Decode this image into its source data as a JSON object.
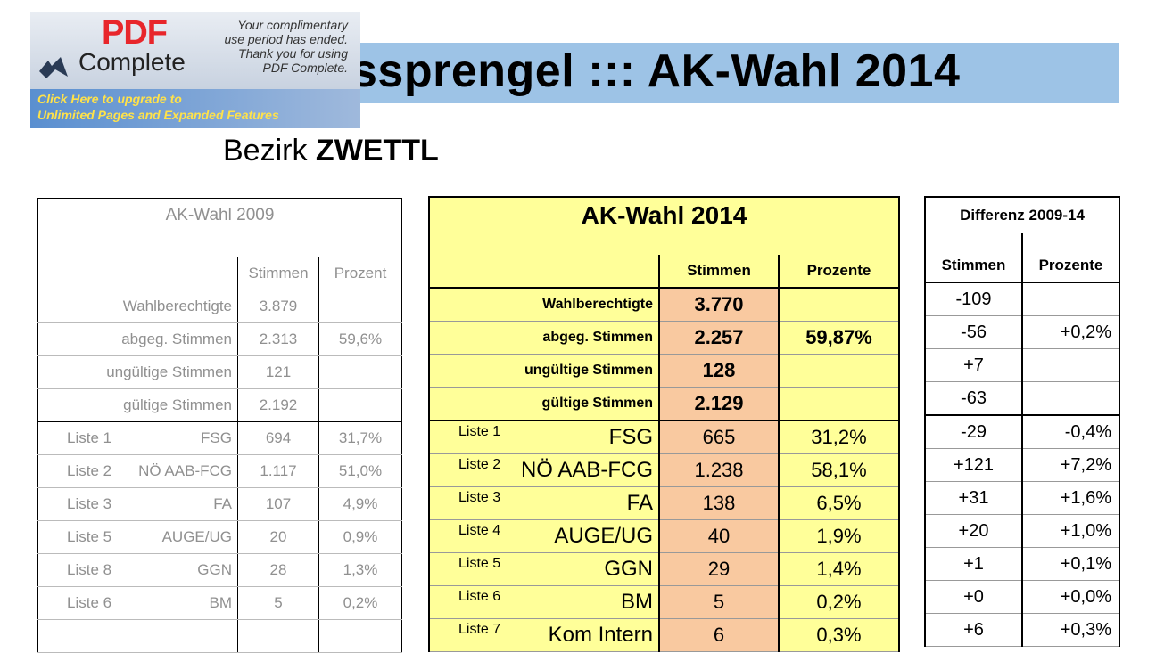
{
  "header": {
    "title": "ssprengel ::: AK-Wahl 2014",
    "subtitle_prefix": "Bezirk",
    "subtitle_name": "ZWETTL"
  },
  "pdf_banner": {
    "brand_pdf": "PDF",
    "brand_complete": "Complete",
    "message_lines": [
      "Your complimentary",
      "use period has ended.",
      "Thank you for using",
      "PDF Complete."
    ],
    "cta_lines": [
      "Click Here to upgrade to",
      "Unlimited Pages and Expanded Features"
    ]
  },
  "table_2009": {
    "title": "AK-Wahl 2009",
    "col_votes": "Stimmen",
    "col_pct": "Prozent",
    "summary": [
      {
        "label": "Wahlberechtigte",
        "votes": "3.879",
        "pct": ""
      },
      {
        "label": "abgeg. Stimmen",
        "votes": "2.313",
        "pct": "59,6%"
      },
      {
        "label": "ungültige Stimmen",
        "votes": "121",
        "pct": ""
      },
      {
        "label": "gültige Stimmen",
        "votes": "2.192",
        "pct": ""
      }
    ],
    "lists": [
      {
        "list": "Liste 1",
        "name": "FSG",
        "votes": "694",
        "pct": "31,7%"
      },
      {
        "list": "Liste 2",
        "name": "NÖ AAB-FCG",
        "votes": "1.117",
        "pct": "51,0%"
      },
      {
        "list": "Liste 3",
        "name": "FA",
        "votes": "107",
        "pct": "4,9%"
      },
      {
        "list": "Liste 5",
        "name": "AUGE/UG",
        "votes": "20",
        "pct": "0,9%"
      },
      {
        "list": "Liste 8",
        "name": "GGN",
        "votes": "28",
        "pct": "1,3%"
      },
      {
        "list": "Liste 6",
        "name": "BM",
        "votes": "5",
        "pct": "0,2%"
      },
      {
        "list": "",
        "name": "",
        "votes": "",
        "pct": ""
      }
    ]
  },
  "table_2014": {
    "title": "AK-Wahl 2014",
    "col_votes": "Stimmen",
    "col_pct": "Prozente",
    "summary": [
      {
        "label": "Wahlberechtigte",
        "votes": "3.770",
        "pct": ""
      },
      {
        "label": "abgeg. Stimmen",
        "votes": "2.257",
        "pct": "59,87%"
      },
      {
        "label": "ungültige Stimmen",
        "votes": "128",
        "pct": ""
      },
      {
        "label": "gültige Stimmen",
        "votes": "2.129",
        "pct": ""
      }
    ],
    "lists": [
      {
        "list": "Liste 1",
        "name": "FSG",
        "votes": "665",
        "pct": "31,2%"
      },
      {
        "list": "Liste 2",
        "name": "NÖ AAB-FCG",
        "votes": "1.238",
        "pct": "58,1%"
      },
      {
        "list": "Liste 3",
        "name": "FA",
        "votes": "138",
        "pct": "6,5%"
      },
      {
        "list": "Liste 4",
        "name": "AUGE/UG",
        "votes": "40",
        "pct": "1,9%"
      },
      {
        "list": "Liste 5",
        "name": "GGN",
        "votes": "29",
        "pct": "1,4%"
      },
      {
        "list": "Liste 6",
        "name": "BM",
        "votes": "5",
        "pct": "0,2%"
      },
      {
        "list": "Liste 7",
        "name": "Kom Intern",
        "votes": "6",
        "pct": "0,3%"
      }
    ]
  },
  "table_diff": {
    "title": "Differenz 2009-14",
    "col_votes": "Stimmen",
    "col_pct": "Prozente",
    "summary": [
      {
        "votes": "-109",
        "pct": ""
      },
      {
        "votes": "-56",
        "pct": "+0,2%"
      },
      {
        "votes": "+7",
        "pct": ""
      },
      {
        "votes": "-63",
        "pct": ""
      }
    ],
    "lists": [
      {
        "votes": "-29",
        "pct": "-0,4%"
      },
      {
        "votes": "+121",
        "pct": "+7,2%"
      },
      {
        "votes": "+31",
        "pct": "+1,6%"
      },
      {
        "votes": "+20",
        "pct": "+1,0%"
      },
      {
        "votes": "+1",
        "pct": "+0,1%"
      },
      {
        "votes": "+0",
        "pct": "+0,0%"
      },
      {
        "votes": "+6",
        "pct": "+0,3%"
      }
    ]
  },
  "colors": {
    "title_bar": "#9dc3e6",
    "table_2014_bg": "#ffff99",
    "votes_cell_bg": "#f9c9a0",
    "table_2009_text": "#909090"
  }
}
